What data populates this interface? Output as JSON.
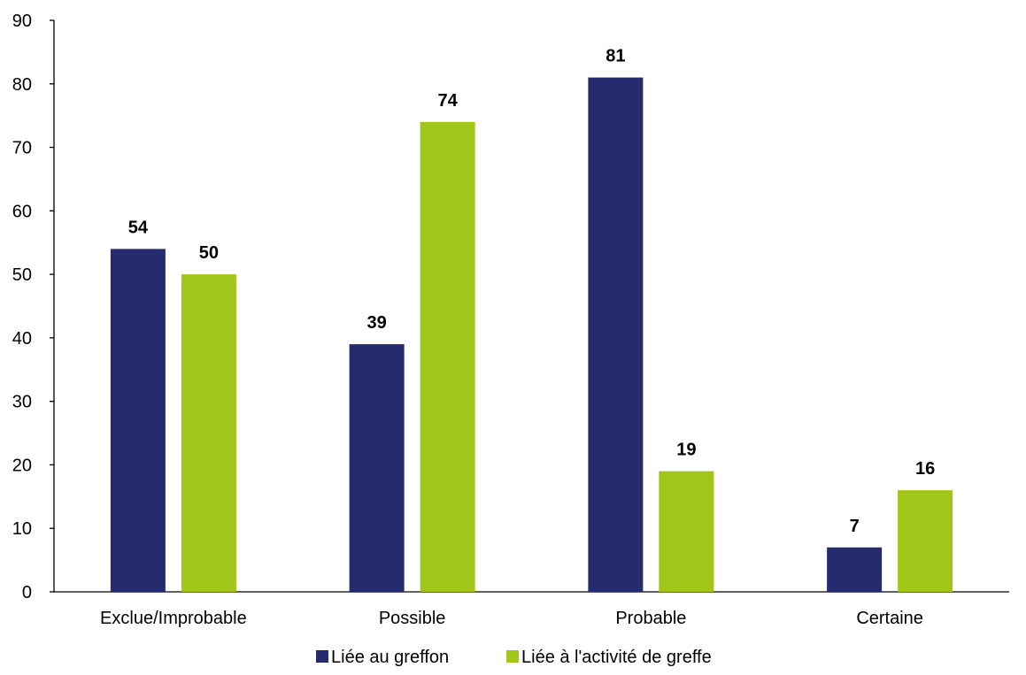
{
  "chart_data": {
    "type": "bar",
    "title": "",
    "xlabel": "",
    "ylabel": "",
    "categories": [
      "Exclue/Improbable",
      "Possible",
      "Probable",
      "Certaine"
    ],
    "series": [
      {
        "name": "Liée au greffon",
        "color": "#262a6e",
        "values": [
          54,
          39,
          81,
          7
        ]
      },
      {
        "name": "Liée à l'activité de greffe",
        "color": "#a1c519",
        "values": [
          50,
          74,
          19,
          16
        ]
      }
    ],
    "ylim": [
      0,
      90
    ],
    "yticks": [
      0,
      10,
      20,
      30,
      40,
      50,
      60,
      70,
      80,
      90
    ],
    "grid": false,
    "legend_position": "bottom",
    "data_labels": true
  }
}
